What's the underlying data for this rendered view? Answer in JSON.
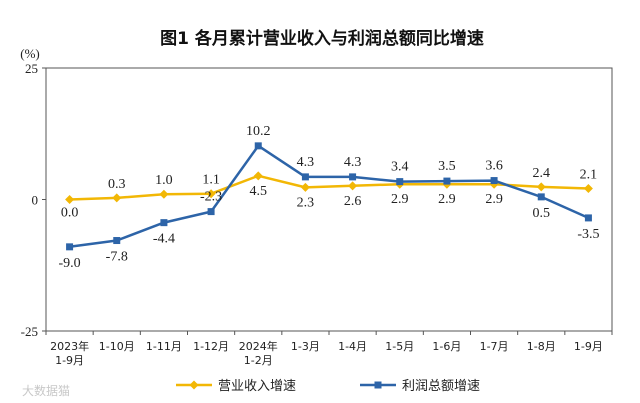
{
  "chart_data": {
    "type": "line",
    "title": "图1  各月累计营业收入与利润总额同比增速",
    "unit_label": "(%)",
    "ylim": [
      -25,
      25
    ],
    "yticks": [
      "25",
      "0",
      "-25"
    ],
    "categories": [
      "2023年\n1-9月",
      "1-10月",
      "1-11月",
      "1-12月",
      "2024年\n1-2月",
      "1-3月",
      "1-4月",
      "1-5月",
      "1-6月",
      "1-7月",
      "1-8月",
      "1-9月"
    ],
    "series": [
      {
        "name": "营业收入增速",
        "color": "#f2b705",
        "marker": "diamond",
        "values": [
          0.0,
          0.3,
          1.0,
          1.1,
          4.5,
          2.3,
          2.6,
          2.9,
          2.9,
          2.9,
          2.4,
          2.1
        ],
        "labels": [
          "0.0",
          "0.3",
          "1.0",
          "1.1",
          "4.5",
          "2.3",
          "2.6",
          "2.9",
          "2.9",
          "2.9",
          "2.4",
          "2.1"
        ]
      },
      {
        "name": "利润总额增速",
        "color": "#2d64a8",
        "marker": "square",
        "values": [
          -9.0,
          -7.8,
          -4.4,
          -2.3,
          10.2,
          4.3,
          4.3,
          3.4,
          3.5,
          3.6,
          0.5,
          -3.5
        ],
        "labels": [
          "-9.0",
          "-7.8",
          "-4.4",
          "-2.3",
          "10.2",
          "4.3",
          "4.3",
          "3.4",
          "3.5",
          "3.6",
          "0.5",
          "-3.5"
        ]
      }
    ],
    "grid": false,
    "legend": "bottom"
  },
  "watermark": "大数据猫"
}
